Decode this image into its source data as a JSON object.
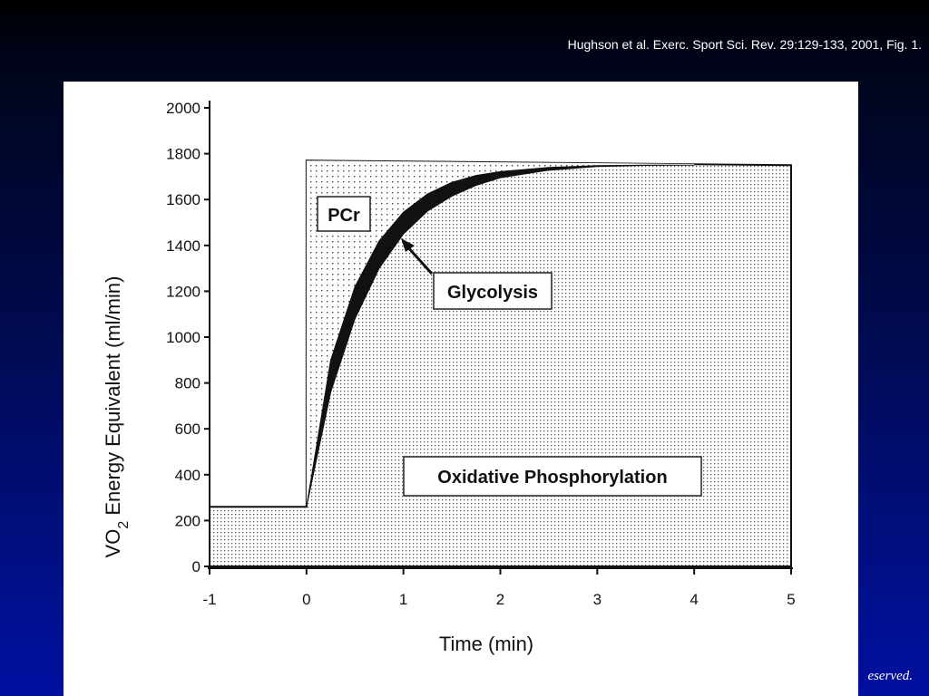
{
  "citation": "Hughson et al.  Exerc. Sport Sci. Rev. 29:129-133, 2001, Fig. 1.",
  "footer": "eserved.",
  "chart_data": {
    "type": "area",
    "title": "",
    "xlabel": "Time (min)",
    "ylabel": "VO2 Energy Equivalent (ml/min)",
    "ylabel_main": "VO",
    "ylabel_sub": "2",
    "ylabel_rest": " Energy Equivalent (ml/min)",
    "xlim": [
      -1,
      5
    ],
    "ylim": [
      0,
      2000
    ],
    "xticks": [
      -1,
      0,
      1,
      2,
      3,
      4,
      5
    ],
    "yticks": [
      0,
      200,
      400,
      600,
      800,
      1000,
      1200,
      1400,
      1600,
      1800,
      2000
    ],
    "grid": false,
    "demand": {
      "name": "PCr",
      "x": [
        -1,
        0,
        0,
        5
      ],
      "y": [
        260,
        260,
        1770,
        1750
      ]
    },
    "glycolysis_upper": {
      "x": [
        0,
        0.25,
        0.5,
        0.75,
        1.0,
        1.25,
        1.5,
        1.75,
        2.0,
        2.5,
        3.0,
        3.5,
        4.0
      ],
      "y": [
        260,
        900,
        1220,
        1420,
        1545,
        1625,
        1675,
        1705,
        1722,
        1740,
        1748,
        1750,
        1750
      ]
    },
    "glycolysis_lower": {
      "x": [
        0,
        0.25,
        0.5,
        0.75,
        1.0,
        1.25,
        1.5,
        1.75,
        2.0,
        2.5,
        3.0,
        3.5,
        4.0
      ],
      "y": [
        260,
        760,
        1080,
        1300,
        1450,
        1550,
        1615,
        1662,
        1695,
        1728,
        1744,
        1749,
        1750
      ]
    },
    "labels": {
      "pcr": "PCr",
      "glycolysis": "Glycolysis",
      "oxidative": "Oxidative Phosphorylation"
    }
  }
}
